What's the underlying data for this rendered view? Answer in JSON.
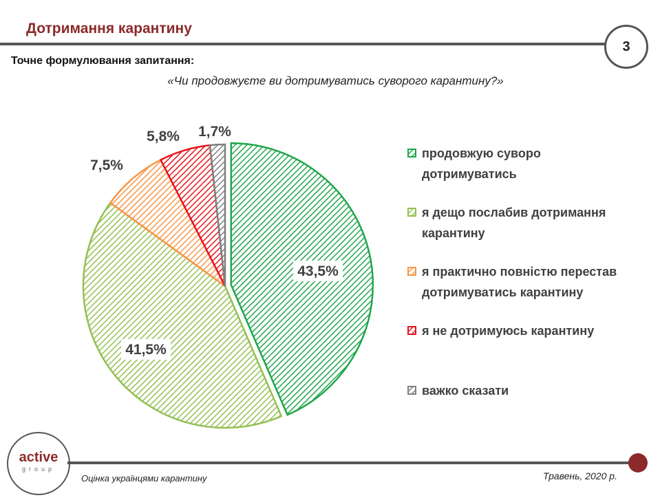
{
  "header": {
    "title": "Дотримання карантину",
    "page_number": "3"
  },
  "question": {
    "label": "Точне формулювання запитання:",
    "text": "«Чи продовжуєте ви дотримуватись суворого карантину?»"
  },
  "chart_data": {
    "type": "pie",
    "title": "«Чи продовжуєте ви дотримуватись суворого карантину?»",
    "legend_position": "right",
    "slices": [
      {
        "label": "продовжую суворо дотримуватись",
        "value": 43.5,
        "display": "43,5%",
        "color": "#1fa64b",
        "exploded": true
      },
      {
        "label": "я дещо послабив дотримання карантину",
        "value": 41.5,
        "display": "41,5%",
        "color": "#92c050"
      },
      {
        "label": "я практично повністю перестав дотримуватись карантину",
        "value": 7.5,
        "display": "7,5%",
        "color": "#f79646"
      },
      {
        "label": "я не дотримуюсь карантину",
        "value": 5.8,
        "display": "5,8%",
        "color": "#e8141c"
      },
      {
        "label": "важко сказати",
        "value": 1.7,
        "display": "1,7%",
        "color": "#7f7f7f"
      }
    ]
  },
  "legend": [
    {
      "line1": "продовжую суворо",
      "line2": "дотримуватись"
    },
    {
      "line1": "я дещо послабив дотримання",
      "line2": "карантину"
    },
    {
      "line1": "я практично повністю перестав",
      "line2": "дотримуватись карантину"
    },
    {
      "line1": "я не дотримуюсь карантину",
      "line2": ""
    },
    {
      "line1": "важко сказати",
      "line2": ""
    }
  ],
  "footer": {
    "logo_main": "active",
    "logo_sub": "group",
    "left": "Оцінка українцями карантину",
    "right": "Травень, 2020 р."
  }
}
